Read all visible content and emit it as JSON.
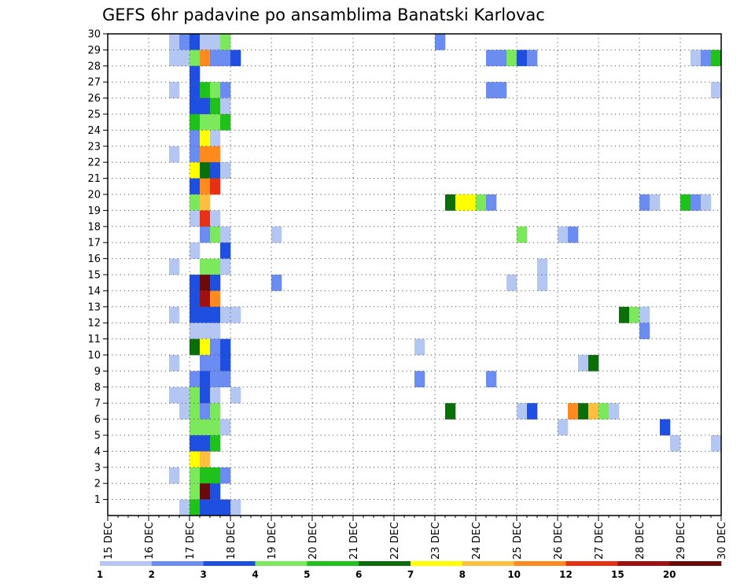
{
  "chart_data": {
    "type": "heatmap",
    "title": "GEFS 6hr padavine po ansamblima Banatski Karlovac",
    "y_ticks": [
      "1",
      "2",
      "3",
      "4",
      "5",
      "6",
      "7",
      "8",
      "9",
      "10",
      "11",
      "12",
      "13",
      "14",
      "15",
      "16",
      "17",
      "18",
      "19",
      "20",
      "21",
      "22",
      "23",
      "24",
      "25",
      "26",
      "27",
      "28",
      "29",
      "30"
    ],
    "ylim": [
      0,
      30
    ],
    "x_ticks": [
      "15 DEC",
      "16 DEC",
      "17 DEC",
      "18 DEC",
      "19 DEC",
      "20 DEC",
      "21 DEC",
      "22 DEC",
      "23 DEC",
      "24 DEC",
      "25 DEC",
      "26 DEC",
      "27 DEC",
      "28 DEC",
      "29 DEC",
      "30 DEC"
    ],
    "x_step_hours": 6,
    "x_num_steps": 60,
    "grid": true,
    "legend": {
      "placement": "bottom",
      "thresholds": [
        "1",
        "2",
        "3",
        "4",
        "5",
        "6",
        "7",
        "8",
        "10",
        "12",
        "15",
        "20"
      ],
      "colors": [
        "#b4c7f2",
        "#6b8cf0",
        "#1e4fe0",
        "#7ce85c",
        "#1fc21a",
        "#0a6e0a",
        "#ffff00",
        "#ffc040",
        "#ff8a1e",
        "#e83014",
        "#a01010",
        "#6a0a0a"
      ]
    },
    "levels": [
      "1",
      "2",
      "3",
      "4",
      "5",
      "6",
      "7",
      "8",
      "10",
      "12",
      "15",
      "20"
    ],
    "cells": [
      [
        30,
        6,
        0
      ],
      [
        30,
        7,
        1
      ],
      [
        30,
        8,
        2
      ],
      [
        30,
        9,
        0
      ],
      [
        30,
        10,
        0
      ],
      [
        30,
        11,
        3
      ],
      [
        30,
        32,
        1
      ],
      [
        29,
        6,
        0
      ],
      [
        29,
        7,
        0
      ],
      [
        29,
        8,
        3
      ],
      [
        29,
        9,
        8
      ],
      [
        29,
        10,
        1
      ],
      [
        29,
        11,
        1
      ],
      [
        29,
        12,
        2
      ],
      [
        29,
        37,
        1
      ],
      [
        29,
        38,
        1
      ],
      [
        29,
        39,
        3
      ],
      [
        29,
        40,
        2
      ],
      [
        29,
        41,
        1
      ],
      [
        29,
        57,
        0
      ],
      [
        29,
        58,
        1
      ],
      [
        29,
        59,
        4
      ],
      [
        28,
        8,
        2
      ],
      [
        27,
        6,
        0
      ],
      [
        27,
        8,
        2
      ],
      [
        27,
        9,
        4
      ],
      [
        27,
        10,
        3
      ],
      [
        27,
        11,
        1
      ],
      [
        27,
        37,
        1
      ],
      [
        27,
        38,
        1
      ],
      [
        27,
        59,
        0
      ],
      [
        26,
        8,
        2
      ],
      [
        26,
        9,
        2
      ],
      [
        26,
        10,
        4
      ],
      [
        26,
        11,
        0
      ],
      [
        25,
        8,
        4
      ],
      [
        25,
        9,
        3
      ],
      [
        25,
        10,
        3
      ],
      [
        25,
        11,
        4
      ],
      [
        24,
        8,
        1
      ],
      [
        24,
        9,
        6
      ],
      [
        24,
        10,
        0
      ],
      [
        23,
        6,
        0
      ],
      [
        23,
        8,
        1
      ],
      [
        23,
        9,
        8
      ],
      [
        23,
        10,
        8
      ],
      [
        22,
        8,
        6
      ],
      [
        22,
        9,
        5
      ],
      [
        22,
        10,
        2
      ],
      [
        22,
        11,
        0
      ],
      [
        21,
        8,
        2
      ],
      [
        21,
        9,
        8
      ],
      [
        21,
        10,
        9
      ],
      [
        20,
        8,
        3
      ],
      [
        20,
        9,
        7
      ],
      [
        20,
        33,
        5
      ],
      [
        20,
        34,
        6
      ],
      [
        20,
        35,
        6
      ],
      [
        20,
        36,
        3
      ],
      [
        20,
        37,
        1
      ],
      [
        20,
        52,
        1
      ],
      [
        20,
        53,
        0
      ],
      [
        20,
        56,
        4
      ],
      [
        20,
        57,
        1
      ],
      [
        20,
        58,
        0
      ],
      [
        19,
        8,
        0
      ],
      [
        19,
        9,
        9
      ],
      [
        19,
        10,
        0
      ],
      [
        18,
        9,
        1
      ],
      [
        18,
        10,
        3
      ],
      [
        18,
        11,
        0
      ],
      [
        18,
        16,
        0
      ],
      [
        18,
        40,
        3
      ],
      [
        18,
        44,
        0
      ],
      [
        18,
        45,
        1
      ],
      [
        17,
        8,
        0
      ],
      [
        17,
        11,
        2
      ],
      [
        16,
        6,
        0
      ],
      [
        16,
        9,
        3
      ],
      [
        16,
        10,
        3
      ],
      [
        16,
        11,
        0
      ],
      [
        16,
        42,
        0
      ],
      [
        15,
        8,
        2
      ],
      [
        15,
        9,
        11
      ],
      [
        15,
        10,
        2
      ],
      [
        15,
        16,
        1
      ],
      [
        15,
        39,
        0
      ],
      [
        15,
        42,
        0
      ],
      [
        14,
        8,
        2
      ],
      [
        14,
        9,
        10
      ],
      [
        14,
        10,
        8
      ],
      [
        13,
        6,
        0
      ],
      [
        13,
        8,
        2
      ],
      [
        13,
        9,
        2
      ],
      [
        13,
        10,
        2
      ],
      [
        13,
        11,
        0
      ],
      [
        13,
        12,
        0
      ],
      [
        13,
        50,
        5
      ],
      [
        13,
        51,
        3
      ],
      [
        13,
        52,
        0
      ],
      [
        12,
        8,
        0
      ],
      [
        12,
        9,
        0
      ],
      [
        12,
        10,
        0
      ],
      [
        12,
        52,
        1
      ],
      [
        11,
        8,
        5
      ],
      [
        11,
        9,
        6
      ],
      [
        11,
        10,
        1
      ],
      [
        11,
        11,
        2
      ],
      [
        11,
        30,
        0
      ],
      [
        10,
        6,
        0
      ],
      [
        10,
        9,
        1
      ],
      [
        10,
        10,
        1
      ],
      [
        10,
        11,
        2
      ],
      [
        10,
        46,
        0
      ],
      [
        10,
        47,
        5
      ],
      [
        9,
        8,
        1
      ],
      [
        9,
        9,
        2
      ],
      [
        9,
        10,
        1
      ],
      [
        9,
        11,
        1
      ],
      [
        9,
        30,
        1
      ],
      [
        9,
        37,
        1
      ],
      [
        8,
        6,
        0
      ],
      [
        8,
        7,
        0
      ],
      [
        8,
        8,
        3
      ],
      [
        8,
        9,
        2
      ],
      [
        8,
        10,
        0
      ],
      [
        8,
        12,
        0
      ],
      [
        7,
        7,
        0
      ],
      [
        7,
        8,
        3
      ],
      [
        7,
        9,
        1
      ],
      [
        7,
        10,
        3
      ],
      [
        7,
        33,
        5
      ],
      [
        7,
        40,
        0
      ],
      [
        7,
        41,
        2
      ],
      [
        7,
        45,
        8
      ],
      [
        7,
        46,
        5
      ],
      [
        7,
        47,
        7
      ],
      [
        7,
        48,
        3
      ],
      [
        7,
        49,
        0
      ],
      [
        6,
        8,
        3
      ],
      [
        6,
        9,
        3
      ],
      [
        6,
        10,
        3
      ],
      [
        6,
        11,
        0
      ],
      [
        6,
        44,
        0
      ],
      [
        6,
        54,
        2
      ],
      [
        5,
        8,
        2
      ],
      [
        5,
        9,
        2
      ],
      [
        5,
        10,
        4
      ],
      [
        5,
        55,
        0
      ],
      [
        5,
        59,
        0
      ],
      [
        4,
        8,
        6
      ],
      [
        4,
        9,
        7
      ],
      [
        3,
        6,
        0
      ],
      [
        3,
        8,
        3
      ],
      [
        3,
        9,
        4
      ],
      [
        3,
        10,
        4
      ],
      [
        3,
        11,
        1
      ],
      [
        2,
        8,
        3
      ],
      [
        2,
        9,
        11
      ],
      [
        2,
        10,
        2
      ],
      [
        1,
        7,
        0
      ],
      [
        1,
        8,
        4
      ],
      [
        1,
        9,
        2
      ],
      [
        1,
        10,
        2
      ],
      [
        1,
        11,
        2
      ],
      [
        1,
        12,
        0
      ]
    ]
  }
}
